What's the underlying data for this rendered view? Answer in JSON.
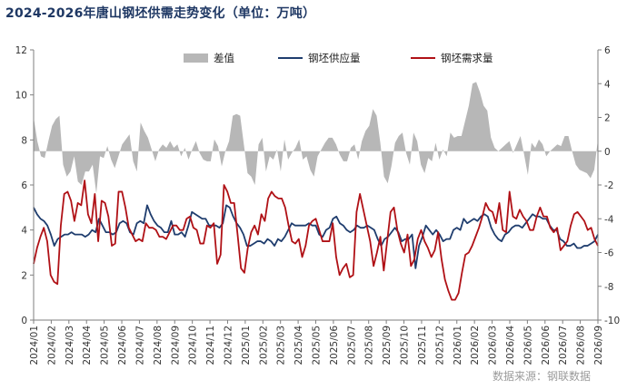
{
  "title": "2024-2026年唐山钢坯供需走势变化（单位：万吨）",
  "source": "数据来源：钢联数据",
  "colors": {
    "supply": "#1f3d6e",
    "demand": "#b01116",
    "diff": "#b7b7b7",
    "title": "#1f3864"
  },
  "chart_data": {
    "type": "line",
    "title": "2024-2026年唐山钢坯供需走势变化（单位：万吨）",
    "legend_position": "top",
    "grid": false,
    "x_tick_labels": [
      "2024/01",
      "2024/02",
      "2024/03",
      "2024/04",
      "2024/05",
      "2024/06",
      "2024/07",
      "2024/08",
      "2024/09",
      "2024/10",
      "2024/11",
      "2024/12",
      "2025/01",
      "2025/02",
      "2025/03",
      "2025/04",
      "2025/05",
      "2025/06",
      "2025/07",
      "2025/08",
      "2025/09",
      "2025/10",
      "2025/11",
      "2025/12",
      "2026/01",
      "2026/02",
      "2026/03",
      "2026/04",
      "2026/05",
      "2026/06",
      "2026/07",
      "2026/08",
      "2026/09"
    ],
    "left_axis": {
      "min": 0,
      "max": 12,
      "ticks": [
        0,
        2,
        4,
        6,
        8,
        10,
        12
      ]
    },
    "right_axis": {
      "min": -10,
      "max": 6,
      "ticks": [
        -10,
        -8,
        -6,
        -4,
        -2,
        0,
        2,
        4,
        6
      ]
    },
    "series": [
      {
        "name": "差值",
        "kind": "area",
        "axis": "right",
        "values": [
          2.0,
          0.6,
          -0.3,
          -0.4,
          0.6,
          1.5,
          1.9,
          2.1,
          -0.8,
          -1.5,
          -1.2,
          -0.3,
          -1.8,
          -2.0,
          -1.2,
          -1.2,
          -0.8,
          -2.5,
          -0.3,
          -0.4,
          0.3,
          -0.5,
          -1.0,
          -0.3,
          0.4,
          0.7,
          1.0,
          -0.6,
          -1.2,
          1.7,
          1.2,
          0.8,
          0.1,
          -0.6,
          0.1,
          0.4,
          0.2,
          0.6,
          0.2,
          0.4,
          -0.3,
          0.2,
          -0.5,
          0.1,
          0.6,
          -0.1,
          -0.5,
          -0.6,
          -0.6,
          0.7,
          0.3,
          -0.9,
          0.0,
          0.6,
          2.1,
          2.2,
          2.1,
          0.4,
          -1.3,
          -1.5,
          -2.0,
          0.4,
          0.8,
          -1.2,
          -0.3,
          -0.5,
          0.1,
          -1.2,
          0.7,
          -0.5,
          -0.1,
          0.2,
          0.7,
          -0.5,
          -0.3,
          -1.1,
          -1.5,
          -0.3,
          0.1,
          0.5,
          0.8,
          0.8,
          0.4,
          -0.2,
          -0.6,
          -0.6,
          0.2,
          0.4,
          -0.5,
          0.6,
          1.2,
          1.5,
          2.5,
          2.1,
          0.5,
          -1.5,
          -1.9,
          -0.9,
          0.5,
          0.9,
          1.1,
          -0.1,
          -0.8,
          1.1,
          0.6,
          -0.8,
          -1.3,
          -0.4,
          -0.6,
          0.5,
          -0.5,
          0.1,
          -0.3,
          1.1,
          0.8,
          0.9,
          0.9,
          1.8,
          2.7,
          4.0,
          4.1,
          3.5,
          2.7,
          2.4,
          0.8,
          0.2,
          0.0,
          0.2,
          0.4,
          0.6,
          -0.1,
          0.4,
          0.9,
          -0.2,
          -1.4,
          0.5,
          0.2,
          0.7,
          0.4,
          -0.3,
          0.0,
          0.2,
          0.4,
          0.3,
          0.9,
          0.9,
          0.0,
          -0.8,
          -1.1,
          -1.2,
          -1.3,
          -1.6,
          -1.1,
          0.7
        ]
      },
      {
        "name": "钢坯供应量",
        "kind": "line",
        "axis": "left",
        "values": [
          5.0,
          4.7,
          4.5,
          4.4,
          4.2,
          3.8,
          3.3,
          3.6,
          3.7,
          3.8,
          3.8,
          3.9,
          3.8,
          3.8,
          3.8,
          3.7,
          3.8,
          4.0,
          3.9,
          4.5,
          4.2,
          3.9,
          3.9,
          3.8,
          3.9,
          4.3,
          4.4,
          4.3,
          3.9,
          3.8,
          4.3,
          4.4,
          4.3,
          5.1,
          4.7,
          4.4,
          4.2,
          4.1,
          3.9,
          3.9,
          4.4,
          3.8,
          3.8,
          3.9,
          3.7,
          4.2,
          4.8,
          4.7,
          4.6,
          4.5,
          4.5,
          4.2,
          4.2,
          4.2,
          4.1,
          4.3,
          5.1,
          5.0,
          4.6,
          4.3,
          4.1,
          3.8,
          3.3,
          3.3,
          3.4,
          3.5,
          3.5,
          3.4,
          3.6,
          3.5,
          3.3,
          3.6,
          3.5,
          3.7,
          4.0,
          4.3,
          4.2,
          4.2,
          4.2,
          4.2,
          4.3,
          4.2,
          4.2,
          3.8,
          3.7,
          4.0,
          4.1,
          4.5,
          4.6,
          4.3,
          4.2,
          4.0,
          3.9,
          4.0,
          4.2,
          4.1,
          4.1,
          4.2,
          4.1,
          4.0,
          3.6,
          3.3,
          3.6,
          3.7,
          3.9,
          4.1,
          3.9,
          3.5,
          3.6,
          3.6,
          3.8,
          2.3,
          3.3,
          3.7,
          4.2,
          4.0,
          3.8,
          4.0,
          3.8,
          3.5,
          3.6,
          3.6,
          4.0,
          4.1,
          4.0,
          4.5,
          4.3,
          4.4,
          4.5,
          4.4,
          4.6,
          4.7,
          4.6,
          4.1,
          3.8,
          3.6,
          3.5,
          3.8,
          3.9,
          4.1,
          4.2,
          4.2,
          4.1,
          4.3,
          4.5,
          4.7,
          4.6,
          4.6,
          4.5,
          4.5,
          4.2,
          4.0,
          4.0,
          3.6,
          3.5,
          3.3,
          3.3,
          3.4,
          3.2,
          3.2,
          3.3,
          3.3,
          3.4,
          3.5,
          3.8
        ]
      },
      {
        "name": "钢坯需求量",
        "kind": "line",
        "axis": "left",
        "values": [
          2.5,
          3.2,
          3.7,
          4.1,
          3.5,
          2.0,
          1.7,
          1.6,
          4.2,
          5.6,
          5.7,
          5.3,
          4.4,
          5.2,
          5.1,
          6.2,
          4.7,
          4.3,
          5.6,
          3.5,
          5.3,
          5.2,
          4.6,
          3.3,
          3.4,
          5.7,
          5.7,
          5.0,
          4.1,
          3.8,
          3.5,
          3.6,
          3.5,
          4.3,
          4.1,
          4.1,
          4.0,
          3.7,
          3.7,
          3.6,
          3.9,
          4.2,
          4.2,
          4.0,
          4.0,
          4.5,
          4.6,
          4.1,
          4.0,
          3.4,
          3.4,
          4.2,
          4.1,
          4.3,
          2.5,
          2.9,
          6.0,
          5.7,
          5.2,
          5.2,
          3.8,
          2.3,
          2.1,
          3.2,
          3.9,
          4.2,
          3.8,
          4.7,
          4.4,
          5.4,
          5.7,
          5.5,
          5.4,
          5.4,
          5.0,
          4.2,
          3.5,
          3.4,
          3.6,
          2.8,
          3.3,
          4.2,
          4.4,
          4.5,
          4.0,
          3.5,
          3.5,
          3.5,
          4.3,
          2.8,
          2.0,
          2.3,
          2.5,
          1.9,
          2.0,
          4.8,
          5.6,
          4.9,
          4.2,
          3.5,
          2.4,
          3.0,
          3.7,
          2.2,
          3.5,
          4.8,
          5.0,
          4.0,
          3.4,
          3.0,
          3.8,
          2.4,
          2.7,
          3.6,
          4.0,
          3.5,
          3.2,
          2.8,
          3.1,
          3.9,
          2.7,
          1.8,
          1.3,
          0.9,
          0.9,
          1.2,
          2.1,
          2.9,
          3.0,
          3.3,
          3.7,
          4.1,
          4.6,
          5.2,
          4.9,
          4.8,
          4.3,
          5.2,
          4.0,
          3.9,
          5.7,
          4.6,
          4.5,
          4.9,
          4.6,
          4.4,
          4.0,
          4.0,
          4.6,
          5.0,
          4.6,
          4.6,
          4.1,
          3.9,
          4.1,
          3.1,
          3.3,
          3.5,
          4.2,
          4.7,
          4.8,
          4.6,
          4.4,
          4.0,
          4.1,
          3.6,
          3.3
        ]
      }
    ]
  }
}
